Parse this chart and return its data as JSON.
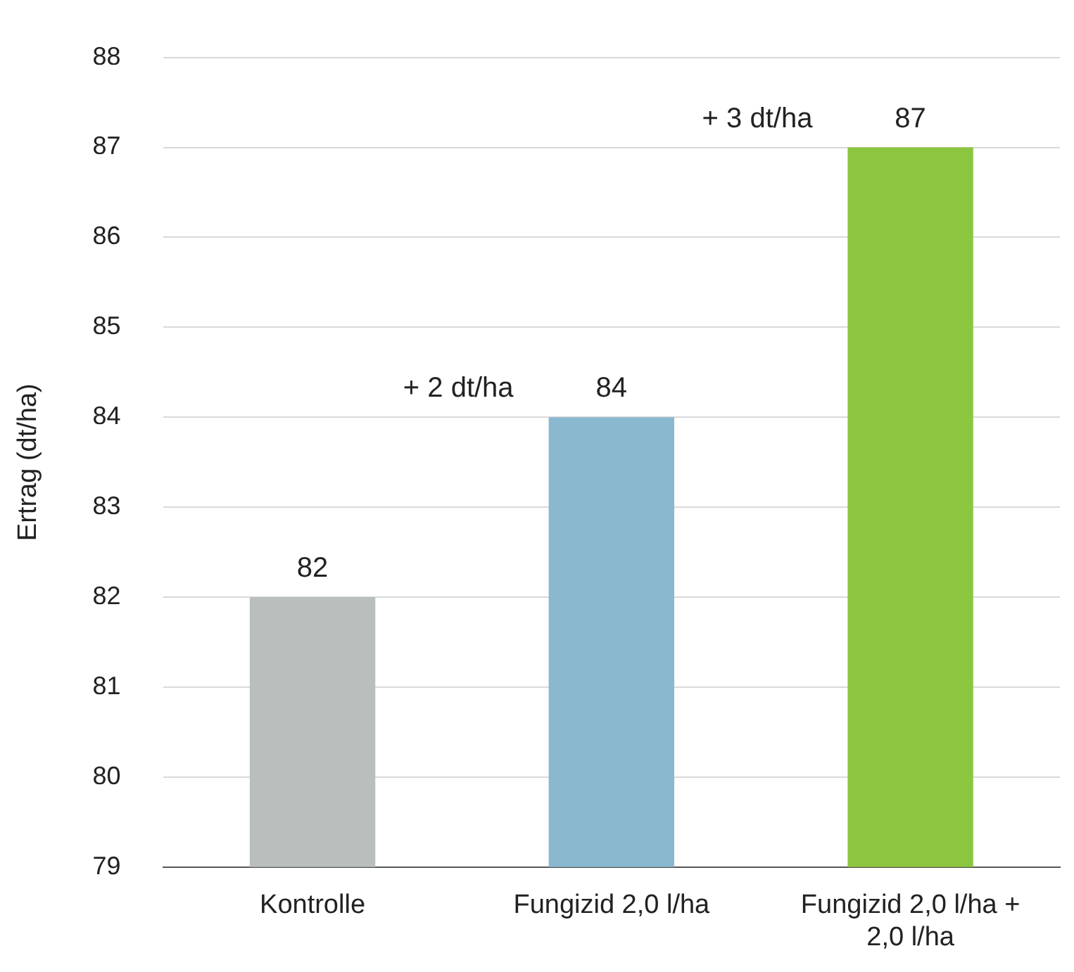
{
  "chart_data": {
    "type": "bar",
    "ylabel": "Ertrag (dt/ha)",
    "categories": [
      "Kontrolle",
      "Fungizid 2,0 l/ha",
      "Fungizid 2,0 l/ha + 2,0 l/ha"
    ],
    "values": [
      82,
      84,
      87
    ],
    "colors": [
      "#b8bfbd",
      "#8ab9cf",
      "#8cc63f"
    ],
    "ylim": [
      79,
      88
    ],
    "yticks": [
      79,
      80,
      81,
      82,
      83,
      84,
      85,
      86,
      87,
      88
    ],
    "grid": "y",
    "data_labels": true,
    "legend": false,
    "annotations": [
      "+ 2 dt/ha",
      "+ 3 dt/ha"
    ]
  }
}
